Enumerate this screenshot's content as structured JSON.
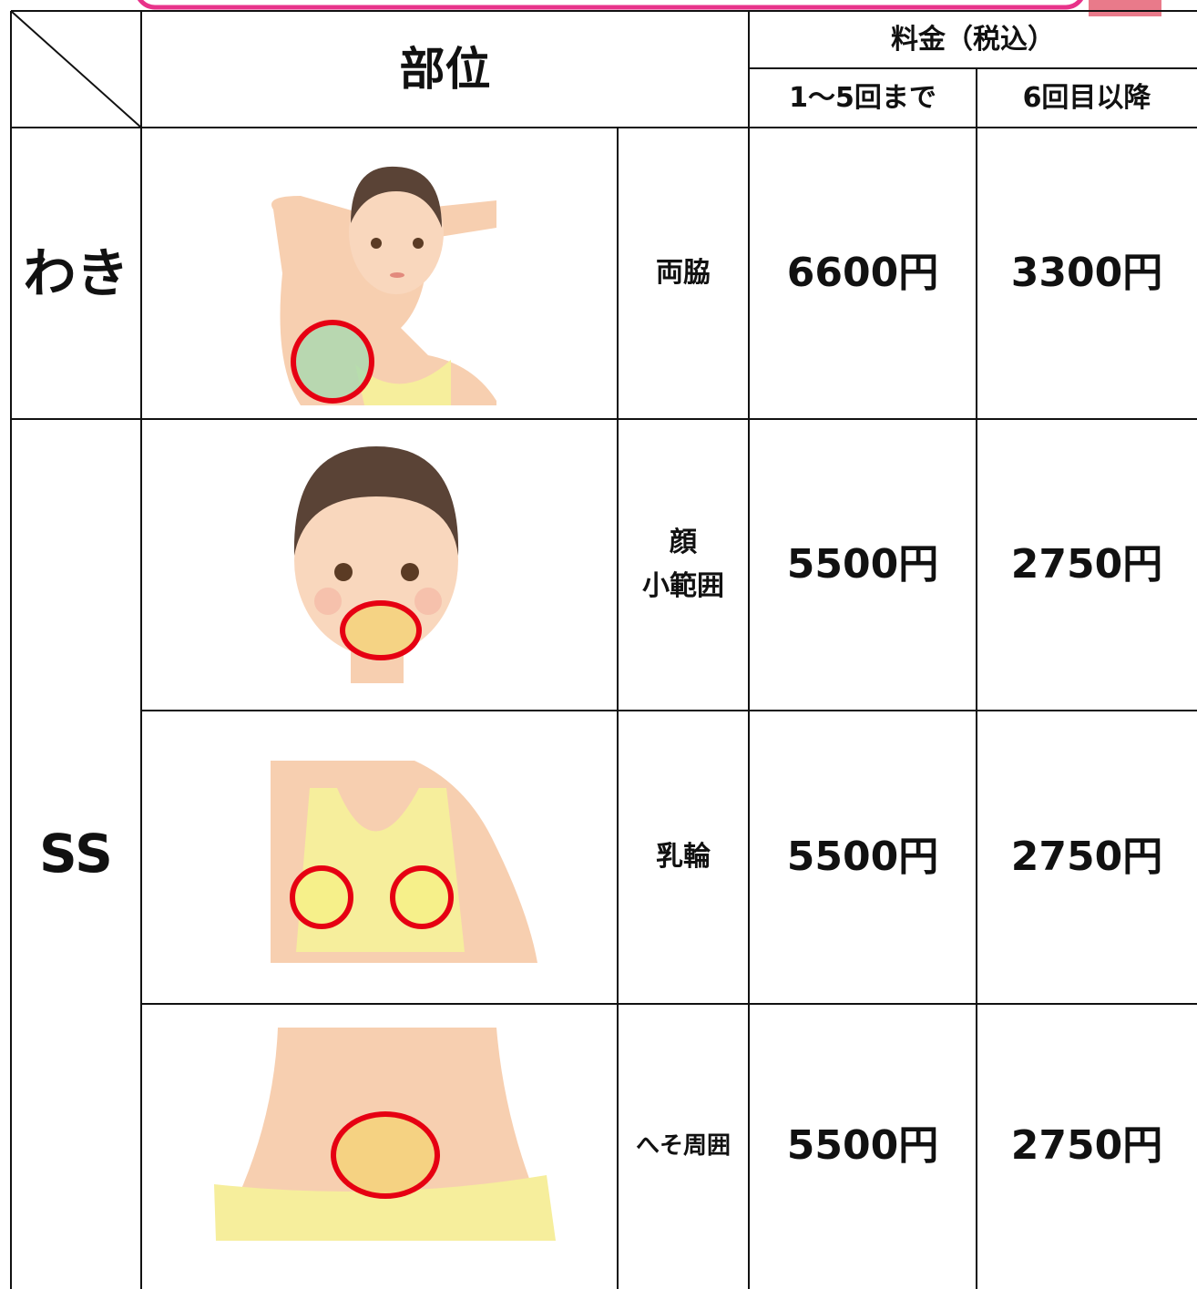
{
  "table": {
    "header": {
      "part": "部位",
      "price": "料金（税込）",
      "price_columns": [
        "1〜5回まで",
        "6回目以降"
      ]
    },
    "groups": [
      {
        "label": "わき",
        "rows": [
          {
            "part": "両脇",
            "price_first": "6600円",
            "price_after": "3300円"
          }
        ]
      },
      {
        "label": "SS",
        "rows": [
          {
            "part": "顔\n小範囲",
            "price_first": "5500円",
            "price_after": "2750円"
          },
          {
            "part": "乳輪",
            "price_first": "5500円",
            "price_after": "2750円"
          },
          {
            "part": "へそ周囲",
            "price_first": "5500円",
            "price_after": "2750円"
          }
        ]
      }
    ]
  }
}
